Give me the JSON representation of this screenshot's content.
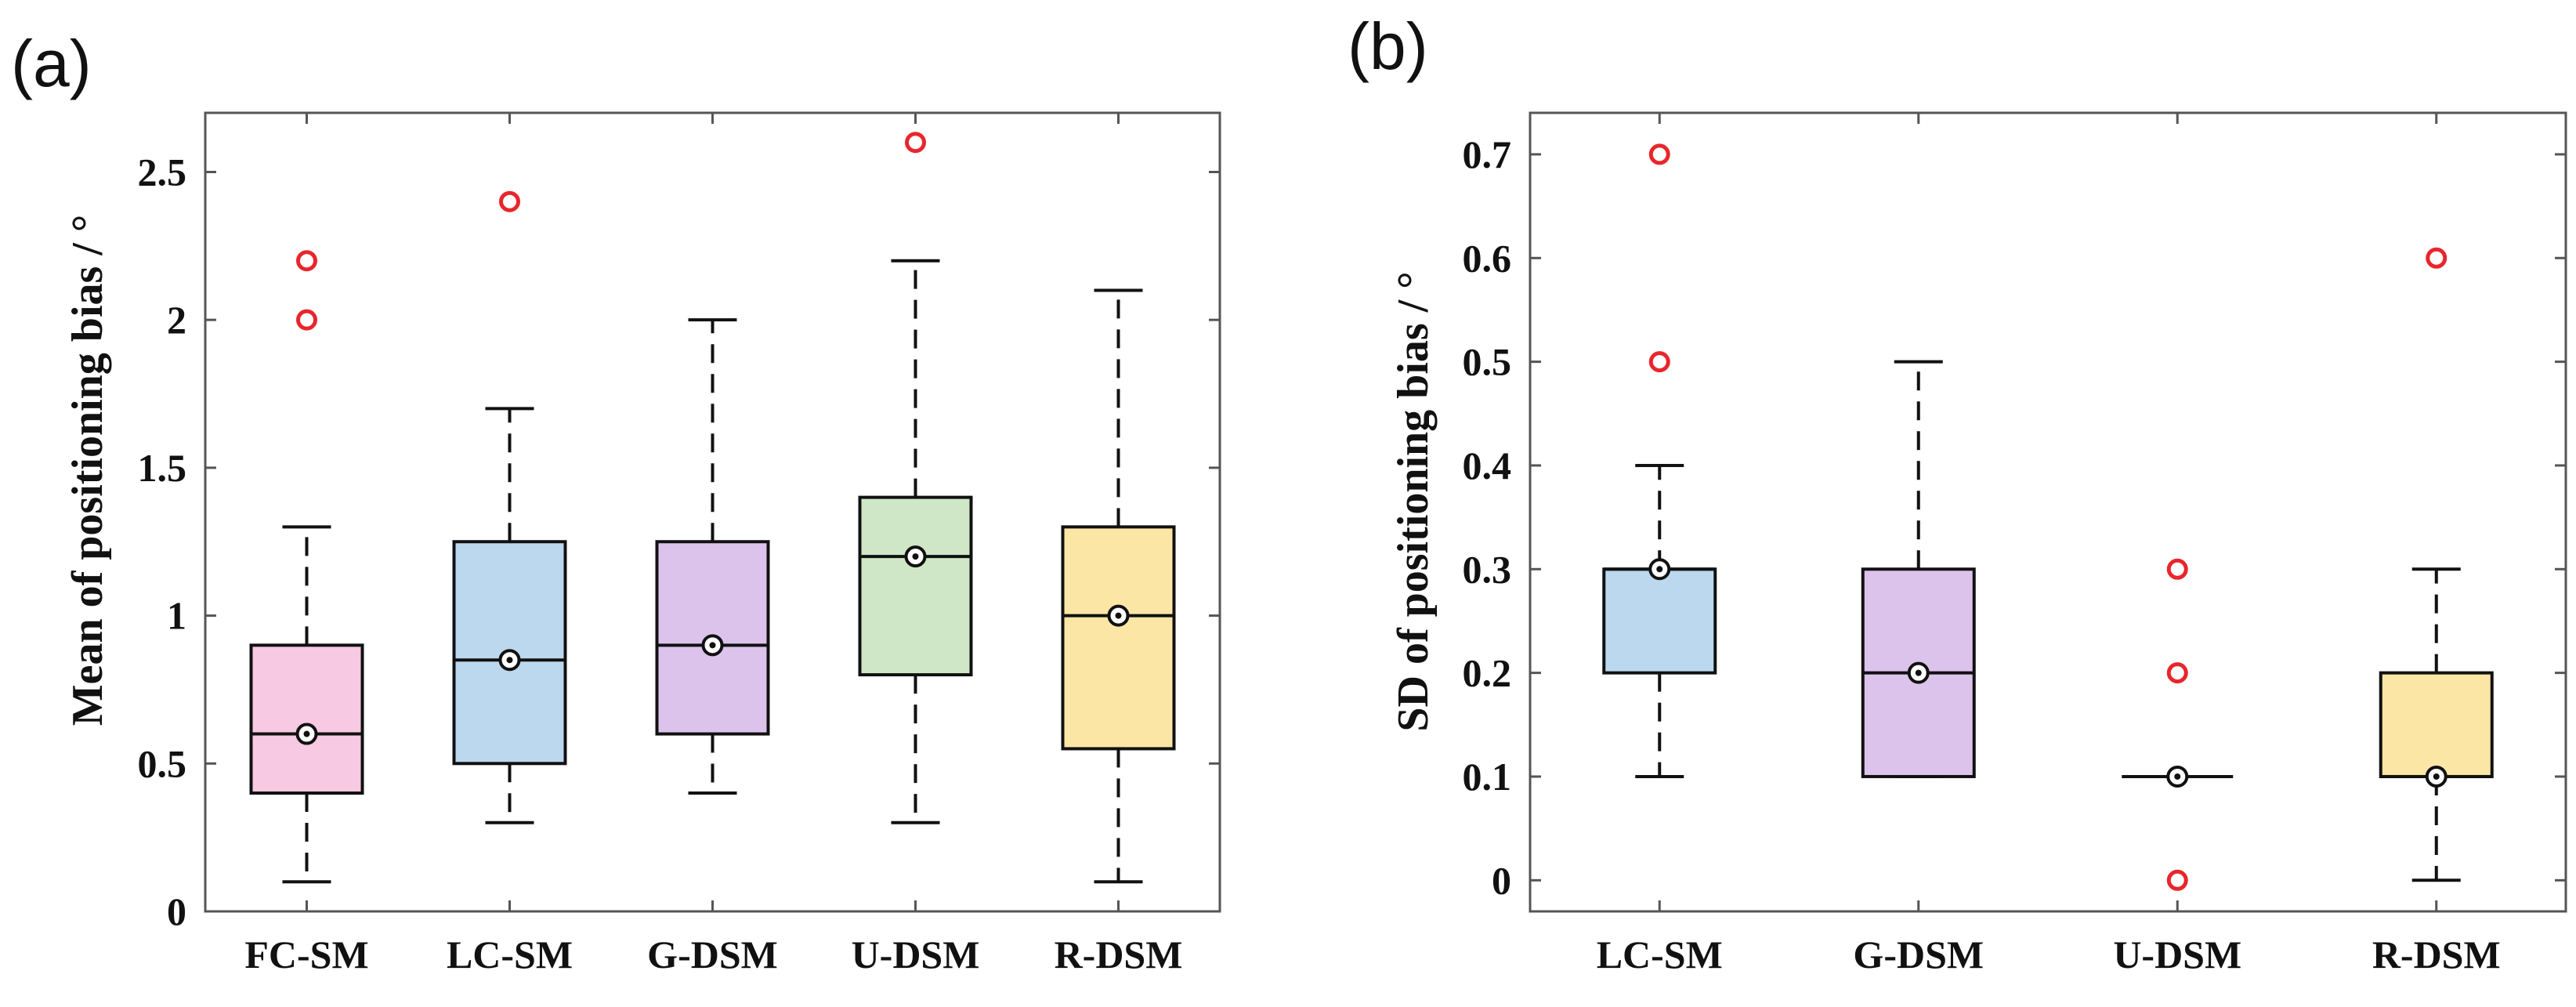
{
  "chart_data": [
    {
      "panel": "(a)",
      "type": "box",
      "xlabel": "",
      "ylabel": "Mean of positioning bias / °",
      "ylim": [
        0,
        2.7
      ],
      "yticks": [
        0,
        0.5,
        1,
        1.5,
        2,
        2.5
      ],
      "ytick_labels": [
        "0",
        "0.5",
        "1",
        "1.5",
        "2",
        "2.5"
      ],
      "grid": false,
      "categories": [
        "FC-SM",
        "LC-SM",
        "G-DSM",
        "U-DSM",
        "R-DSM"
      ],
      "boxes": [
        {
          "name": "FC-SM",
          "whisker_low": 0.1,
          "q1": 0.4,
          "median": 0.6,
          "q3": 0.9,
          "whisker_high": 1.3,
          "mean": 0.6,
          "outliers": [
            2.0,
            2.2
          ],
          "fill": "#f7c9e2"
        },
        {
          "name": "LC-SM",
          "whisker_low": 0.3,
          "q1": 0.5,
          "median": 0.85,
          "q3": 1.25,
          "whisker_high": 1.7,
          "mean": 0.85,
          "outliers": [
            2.4
          ],
          "fill": "#bcd8ee"
        },
        {
          "name": "G-DSM",
          "whisker_low": 0.4,
          "q1": 0.6,
          "median": 0.9,
          "q3": 1.25,
          "whisker_high": 2.0,
          "mean": 0.9,
          "outliers": [],
          "fill": "#dcc3ec"
        },
        {
          "name": "U-DSM",
          "whisker_low": 0.3,
          "q1": 0.8,
          "median": 1.2,
          "q3": 1.4,
          "whisker_high": 2.2,
          "mean": 1.2,
          "outliers": [
            2.6
          ],
          "fill": "#cfe7c6"
        },
        {
          "name": "R-DSM",
          "whisker_low": 0.1,
          "q1": 0.55,
          "median": 1.0,
          "q3": 1.3,
          "whisker_high": 2.1,
          "mean": 1.0,
          "outliers": [],
          "fill": "#fbe6a6"
        }
      ]
    },
    {
      "panel": "(b)",
      "type": "box",
      "xlabel": "",
      "ylabel": "SD of positioning bias / °",
      "ylim": [
        -0.03,
        0.74
      ],
      "yticks": [
        0,
        0.1,
        0.2,
        0.3,
        0.4,
        0.5,
        0.6,
        0.7
      ],
      "ytick_labels": [
        "0",
        "0.1",
        "0.2",
        "0.3",
        "0.4",
        "0.5",
        "0.6",
        "0.7"
      ],
      "grid": false,
      "categories": [
        "LC-SM",
        "G-DSM",
        "U-DSM",
        "R-DSM"
      ],
      "boxes": [
        {
          "name": "LC-SM",
          "whisker_low": 0.1,
          "q1": 0.2,
          "median": 0.3,
          "q3": 0.3,
          "whisker_high": 0.4,
          "mean": 0.3,
          "outliers": [
            0.5,
            0.7
          ],
          "fill": "#bcd8ee"
        },
        {
          "name": "G-DSM",
          "whisker_low": 0.1,
          "q1": 0.1,
          "median": 0.2,
          "q3": 0.3,
          "whisker_high": 0.5,
          "mean": 0.2,
          "outliers": [],
          "fill": "#dcc3ec"
        },
        {
          "name": "U-DSM",
          "whisker_low": 0.1,
          "q1": 0.1,
          "median": 0.1,
          "q3": 0.1,
          "whisker_high": 0.1,
          "mean": 0.1,
          "outliers": [
            0.0,
            0.2,
            0.3
          ],
          "fill": "#cfe7c6"
        },
        {
          "name": "R-DSM",
          "whisker_low": 0.0,
          "q1": 0.1,
          "median": 0.1,
          "q3": 0.2,
          "whisker_high": 0.3,
          "mean": 0.1,
          "outliers": [
            0.6
          ],
          "fill": "#fbe6a6"
        }
      ]
    }
  ],
  "colors": {
    "outlier": "#e8262c",
    "box_edge": "#111111",
    "axis": "#555555"
  }
}
